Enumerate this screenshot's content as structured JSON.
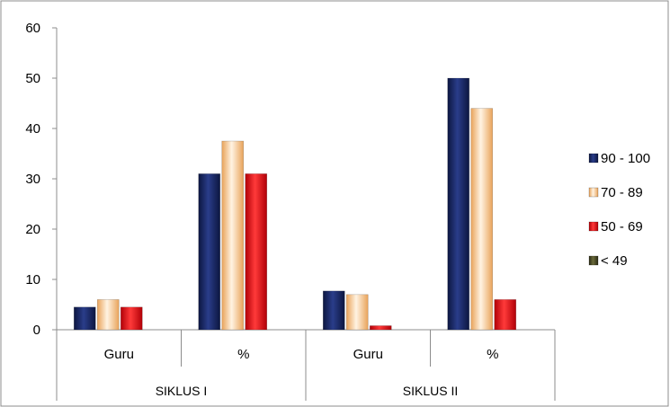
{
  "chart_data": {
    "type": "bar",
    "groups": [
      "SIKLUS I",
      "SIKLUS II"
    ],
    "categories": [
      "Guru",
      "%",
      "Guru",
      "%"
    ],
    "category_group": [
      0,
      0,
      1,
      1
    ],
    "yticks": [
      "0",
      "10",
      "20",
      "30",
      "40",
      "50",
      "60"
    ],
    "ylim": [
      0,
      60
    ],
    "grid": "off",
    "legend_position": "right",
    "series": [
      {
        "name": "90 - 100",
        "color": "#1F2D6B",
        "values": [
          4.5,
          31,
          7.7,
          50
        ]
      },
      {
        "name": "70 - 89",
        "color": "#F7D2A8",
        "values": [
          6,
          37.5,
          7,
          44
        ]
      },
      {
        "name": "50 - 69",
        "color": "#E8141B",
        "values": [
          4.5,
          31,
          0.8,
          6
        ]
      },
      {
        "name": "< 49",
        "color": "#4B4A2A",
        "values": [
          0,
          0,
          0,
          0
        ]
      }
    ]
  }
}
